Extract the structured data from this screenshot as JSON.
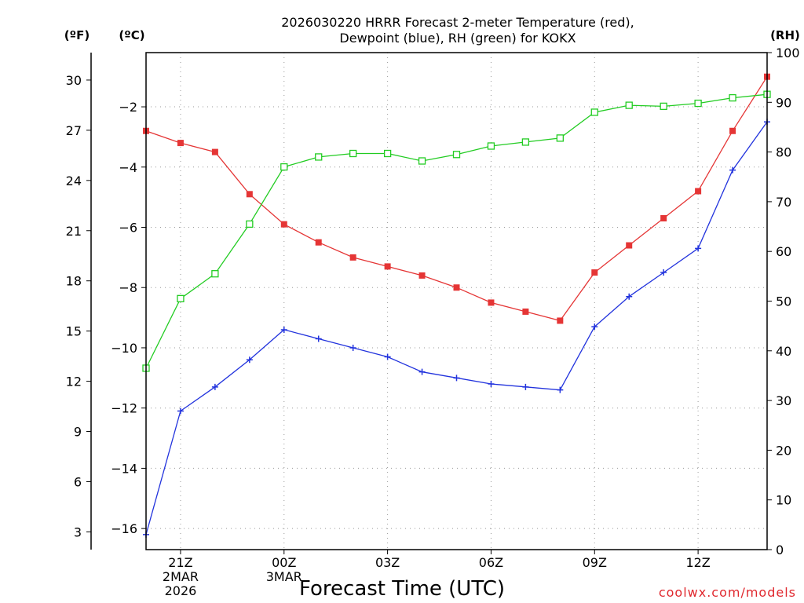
{
  "title_line1": "2026030220 HRRR Forecast 2-meter Temperature (red),",
  "title_line2": "Dewpoint (blue), RH (green) for KOKX",
  "unit_f": "(ºF)",
  "unit_c": "(ºC)",
  "unit_rh": "(RH)",
  "credit": "coolwx.com/models",
  "colors": {
    "temperature": "#e53535",
    "dewpoint": "#2233dd",
    "rh": "#22cc22"
  },
  "chart_data": {
    "type": "line",
    "title": "2026030220 HRRR Forecast 2-meter Temperature (red), Dewpoint (blue), RH (green) for KOKX",
    "xlabel": "Forecast Time (UTC)",
    "x_hours": [
      0,
      1,
      2,
      3,
      4,
      5,
      6,
      7,
      8,
      9,
      10,
      11,
      12,
      13,
      14,
      15,
      16,
      17,
      18
    ],
    "xlim": [
      0,
      18
    ],
    "x_ticks": [
      {
        "hour": 1,
        "label": "21Z",
        "sub1": "2MAR",
        "sub2": "2026"
      },
      {
        "hour": 4,
        "label": "00Z",
        "sub1": "3MAR",
        "sub2": ""
      },
      {
        "hour": 7,
        "label": "03Z",
        "sub1": "",
        "sub2": ""
      },
      {
        "hour": 10,
        "label": "06Z",
        "sub1": "",
        "sub2": ""
      },
      {
        "hour": 13,
        "label": "09Z",
        "sub1": "",
        "sub2": ""
      },
      {
        "hour": 16,
        "label": "12Z",
        "sub1": "",
        "sub2": ""
      }
    ],
    "y_left_celsius": {
      "label": "(ºC)",
      "ylim": [
        -16.7,
        -0.2
      ],
      "ticks": [
        -2,
        -4,
        -6,
        -8,
        -10,
        -12,
        -14,
        -16
      ],
      "tick_labels": [
        "−2",
        "−4",
        "−6",
        "−8",
        "−10",
        "−12",
        "−14",
        "−16"
      ]
    },
    "y_left_fahrenheit": {
      "label": "(ºF)",
      "ticks": [
        30,
        27,
        24,
        21,
        18,
        15,
        12,
        9,
        6,
        3
      ]
    },
    "y_right_rh": {
      "label": "(RH)",
      "ylim": [
        0,
        100
      ],
      "ticks": [
        100,
        90,
        80,
        70,
        60,
        50,
        40,
        30,
        20,
        10,
        0
      ]
    },
    "series": [
      {
        "name": "Temperature",
        "axis": "celsius",
        "marker": "filled-square",
        "values": [
          -2.8,
          -3.2,
          -3.5,
          -4.9,
          -5.9,
          -6.5,
          -7.0,
          -7.3,
          -7.6,
          -8.0,
          -8.5,
          -8.8,
          -9.1,
          -7.5,
          -6.6,
          -5.7,
          -4.8,
          -2.8,
          -1.0
        ]
      },
      {
        "name": "Dewpoint",
        "axis": "celsius",
        "marker": "plus",
        "values": [
          -16.2,
          -12.1,
          -11.3,
          -10.4,
          -9.4,
          -9.7,
          -10.0,
          -10.3,
          -10.8,
          -11.0,
          -11.2,
          -11.3,
          -11.4,
          -9.3,
          -8.3,
          -7.5,
          -6.7,
          -4.1,
          -2.5
        ]
      },
      {
        "name": "RH",
        "axis": "rh",
        "marker": "open-square",
        "values": [
          36.5,
          50.5,
          55.5,
          65.5,
          77.0,
          79.0,
          79.7,
          79.7,
          78.2,
          79.5,
          81.2,
          82.0,
          82.8,
          88.0,
          89.4,
          89.2,
          89.8,
          90.9,
          91.6
        ]
      }
    ]
  }
}
